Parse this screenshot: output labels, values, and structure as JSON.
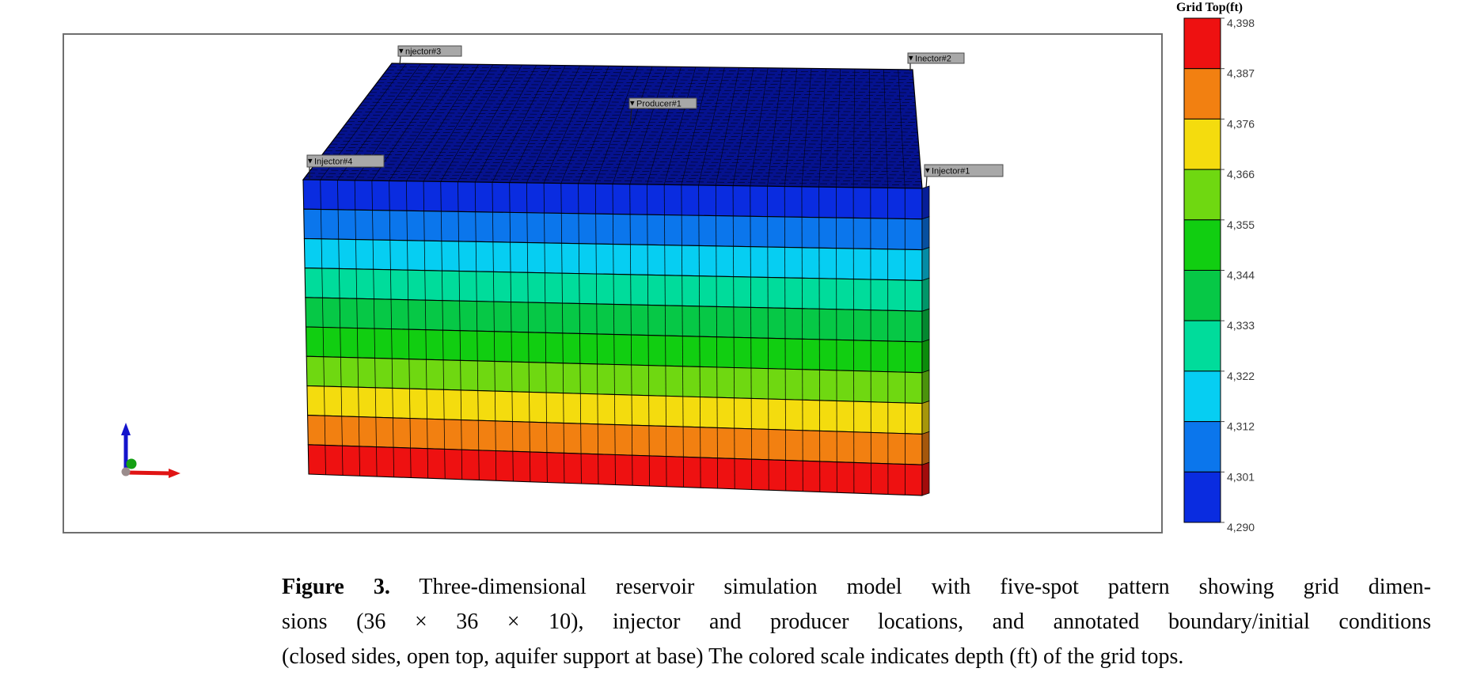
{
  "legend": {
    "title": "Grid Top(ft)",
    "tick_labels": [
      "4,398",
      "4,387",
      "4,376",
      "4,366",
      "4,355",
      "4,344",
      "4,333",
      "4,322",
      "4,312",
      "4,301",
      "4,290"
    ],
    "block_colors_top_to_bottom": [
      "#EE1111",
      "#F28011",
      "#F4DC0E",
      "#6FD811",
      "#11CE11",
      "#06C846",
      "#00DC9B",
      "#06CEF2",
      "#0B76EC",
      "#0A2CE0"
    ]
  },
  "model": {
    "top_face_color": "#05128F",
    "grid_line_color": "#000000",
    "wells": [
      {
        "label": "njector#3"
      },
      {
        "label": "Inector#2"
      },
      {
        "label": "Producer#1"
      },
      {
        "label": "Injector#4"
      },
      {
        "label": "Injector#1"
      }
    ],
    "well_label_fill": "#A8A8A8",
    "well_label_border": "#4A4A4A",
    "axis_triad": {
      "z_color": "#1414CC",
      "x_color": "#E01414",
      "y_color": "#14A014",
      "origin_color": "#9A8C8C"
    }
  },
  "caption": {
    "label": "Figure 3.",
    "line1": "Three-dimensional reservoir simulation model with five-spot pattern showing grid dimen-",
    "line2": "sions (36 × 36 × 10), injector and producer locations, and annotated boundary/initial conditions",
    "line3": "(closed sides, open top, aquifer support at base) The colored scale indicates depth (ft) of the grid tops."
  },
  "chart_data": {
    "type": "heatmap",
    "title": "Grid Top(ft)",
    "description": "Three-dimensional reservoir simulation grid (five-spot pattern) colored by depth of grid tops in feet",
    "grid_dimensions": {
      "i": 36,
      "j": 36,
      "k": 10
    },
    "colorbar_tick_values_ft": [
      4398,
      4387,
      4376,
      4366,
      4355,
      4344,
      4333,
      4322,
      4312,
      4301,
      4290
    ],
    "colorbar_range_ft": [
      4290,
      4398
    ],
    "layer_top_depths_shallow_to_deep_ft": [
      4290,
      4301,
      4312,
      4322,
      4333,
      4344,
      4355,
      4366,
      4376,
      4387
    ],
    "wells": [
      "Injector#3",
      "Injector#2",
      "Producer#1",
      "Injector#4",
      "Injector#1"
    ],
    "legend_position": "right"
  }
}
